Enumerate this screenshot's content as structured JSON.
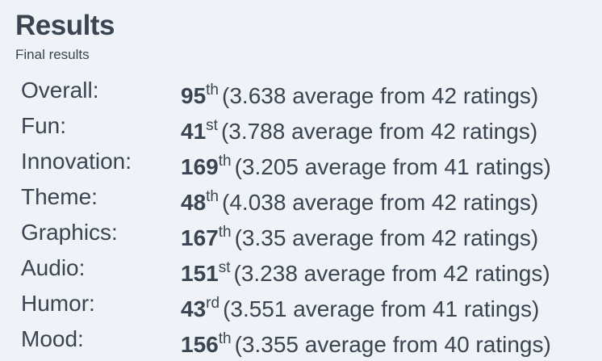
{
  "title": "Results",
  "subtitle": "Final results",
  "rows": [
    {
      "label": "Overall:",
      "rank": "95",
      "suffix": "th",
      "detail": "(3.638 average from 42 ratings)"
    },
    {
      "label": "Fun:",
      "rank": "41",
      "suffix": "st",
      "detail": "(3.788 average from 42 ratings)"
    },
    {
      "label": "Innovation:",
      "rank": "169",
      "suffix": "th",
      "detail": "(3.205 average from 41 ratings)"
    },
    {
      "label": "Theme:",
      "rank": "48",
      "suffix": "th",
      "detail": "(4.038 average from 42 ratings)"
    },
    {
      "label": "Graphics:",
      "rank": "167",
      "suffix": "th",
      "detail": "(3.35 average from 42 ratings)"
    },
    {
      "label": "Audio:",
      "rank": "151",
      "suffix": "st",
      "detail": "(3.238 average from 42 ratings)"
    },
    {
      "label": "Humor:",
      "rank": "43",
      "suffix": "rd",
      "detail": "(3.551 average from 41 ratings)"
    },
    {
      "label": "Mood:",
      "rank": "156",
      "suffix": "th",
      "detail": "(3.355 average from 40 ratings)"
    }
  ],
  "colors": {
    "background": "#eff2f7",
    "text": "#3b4552"
  }
}
